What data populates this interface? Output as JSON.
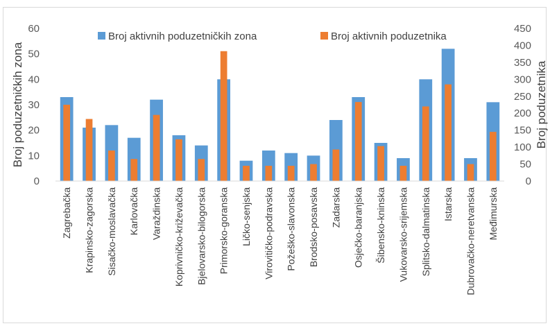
{
  "chart_data": {
    "type": "bar",
    "categories": [
      "Zagrebačka",
      "Krapinsko-zagorska",
      "Sisačko-moslavačka",
      "Karlovačka",
      "Varaždinska",
      "Koprivničko-križevačka",
      "Bjelovarsko-bilogorska",
      "Primorsko-goranska",
      "Ličko-senjska",
      "Virovitičko-podravska",
      "Požeško-slavonska",
      "Brodsko-posavska",
      "Zadarska",
      "Osječko-baranjska",
      "Šibensko-kninska",
      "Vukovarsko-srijemska",
      "Splitsko-dalmatinska",
      "Istarska",
      "Dubrovačko-neretvanska",
      "Međimurska"
    ],
    "series": [
      {
        "name": "Broj aktivnih poduzetničkih zona",
        "axis": "left",
        "color": "#5b9bd5",
        "values": [
          33,
          21,
          22,
          17,
          32,
          18,
          14,
          40,
          8,
          12,
          11,
          10,
          24,
          33,
          15,
          9,
          40,
          52,
          9,
          31
        ]
      },
      {
        "name": "Broj aktivnih poduzetnika",
        "axis": "right",
        "color": "#ed7d31",
        "values": [
          225,
          183,
          90,
          65,
          195,
          123,
          65,
          383,
          45,
          45,
          45,
          50,
          93,
          233,
          103,
          45,
          220,
          285,
          50,
          145
        ]
      }
    ],
    "ylabel_left": "Broj poduzetničkih zona",
    "ylabel_right": "Broj poduzetnika",
    "ylim_left": [
      0,
      60
    ],
    "ylim_right": [
      0,
      450
    ],
    "yticks_left": [
      0,
      10,
      20,
      30,
      40,
      50,
      60
    ],
    "yticks_right": [
      0,
      50,
      100,
      150,
      200,
      250,
      300,
      350,
      400,
      450
    ],
    "grid": false,
    "legend_position": "top"
  }
}
